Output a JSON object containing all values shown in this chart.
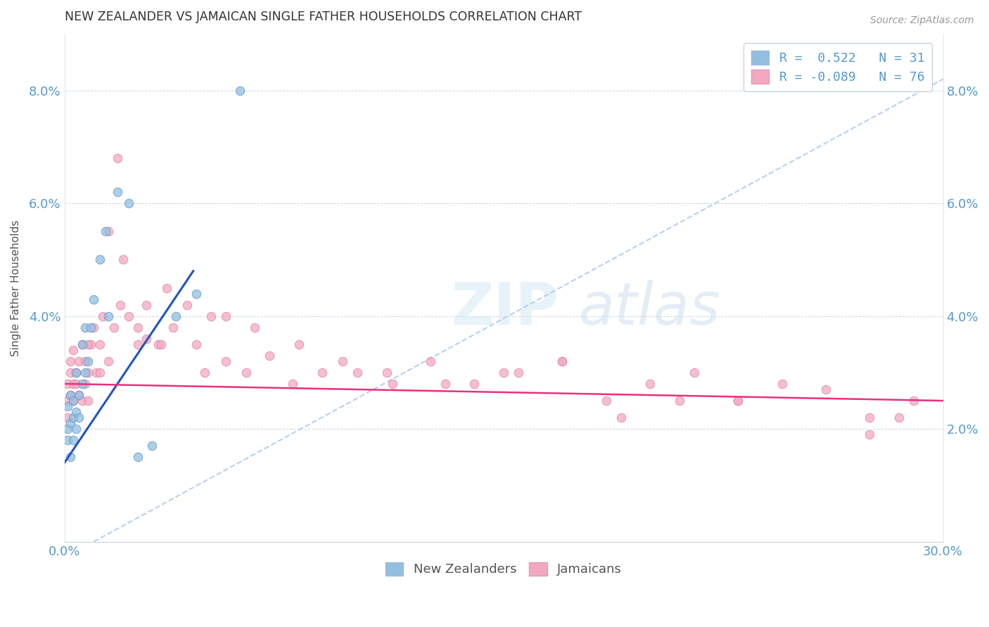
{
  "title": "NEW ZEALANDER VS JAMAICAN SINGLE FATHER HOUSEHOLDS CORRELATION CHART",
  "source": "Source: ZipAtlas.com",
  "ylabel": "Single Father Households",
  "xlim": [
    0.0,
    0.3
  ],
  "ylim": [
    0.0,
    0.09
  ],
  "xticks": [
    0.0,
    0.05,
    0.1,
    0.15,
    0.2,
    0.25,
    0.3
  ],
  "xtick_labels": [
    "0.0%",
    "",
    "",
    "",
    "",
    "",
    "30.0%"
  ],
  "yticks": [
    0.0,
    0.02,
    0.04,
    0.06,
    0.08
  ],
  "ytick_labels_left": [
    "",
    "",
    "4.0%",
    "6.0%",
    "8.0%"
  ],
  "ytick_labels_right": [
    "",
    "2.0%",
    "4.0%",
    "6.0%",
    "8.0%"
  ],
  "legend_label1": "New Zealanders",
  "legend_label2": "Jamaicans",
  "blue_color": "#92BEE0",
  "pink_color": "#F4A8C0",
  "blue_line_color": "#2255BB",
  "pink_line_color": "#E83080",
  "dashed_line_color": "#B0CCEE",
  "background_color": "#FFFFFF",
  "tick_color": "#5599CC",
  "nz_x": [
    0.001,
    0.001,
    0.001,
    0.002,
    0.002,
    0.002,
    0.003,
    0.003,
    0.003,
    0.004,
    0.004,
    0.004,
    0.005,
    0.005,
    0.006,
    0.006,
    0.007,
    0.007,
    0.008,
    0.009,
    0.01,
    0.012,
    0.014,
    0.015,
    0.018,
    0.022,
    0.025,
    0.03,
    0.038,
    0.045,
    0.06
  ],
  "nz_y": [
    0.02,
    0.024,
    0.018,
    0.021,
    0.026,
    0.015,
    0.022,
    0.018,
    0.025,
    0.023,
    0.03,
    0.02,
    0.026,
    0.022,
    0.028,
    0.035,
    0.03,
    0.038,
    0.032,
    0.038,
    0.043,
    0.05,
    0.055,
    0.04,
    0.062,
    0.06,
    0.015,
    0.017,
    0.04,
    0.044,
    0.08
  ],
  "jam_x": [
    0.001,
    0.001,
    0.001,
    0.002,
    0.002,
    0.002,
    0.003,
    0.003,
    0.003,
    0.004,
    0.004,
    0.005,
    0.005,
    0.006,
    0.006,
    0.007,
    0.007,
    0.008,
    0.008,
    0.009,
    0.01,
    0.011,
    0.012,
    0.013,
    0.015,
    0.017,
    0.019,
    0.022,
    0.025,
    0.028,
    0.032,
    0.037,
    0.042,
    0.048,
    0.055,
    0.062,
    0.07,
    0.078,
    0.088,
    0.1,
    0.112,
    0.125,
    0.14,
    0.155,
    0.17,
    0.185,
    0.2,
    0.215,
    0.23,
    0.245,
    0.26,
    0.275,
    0.015,
    0.02,
    0.028,
    0.035,
    0.045,
    0.055,
    0.065,
    0.08,
    0.095,
    0.11,
    0.13,
    0.15,
    0.17,
    0.19,
    0.21,
    0.23,
    0.008,
    0.012,
    0.018,
    0.025,
    0.033,
    0.05,
    0.29,
    0.285,
    0.275
  ],
  "jam_y": [
    0.028,
    0.025,
    0.022,
    0.03,
    0.026,
    0.032,
    0.028,
    0.034,
    0.025,
    0.03,
    0.028,
    0.032,
    0.026,
    0.035,
    0.025,
    0.032,
    0.028,
    0.03,
    0.025,
    0.035,
    0.038,
    0.03,
    0.035,
    0.04,
    0.032,
    0.038,
    0.042,
    0.04,
    0.038,
    0.036,
    0.035,
    0.038,
    0.042,
    0.03,
    0.032,
    0.03,
    0.033,
    0.028,
    0.03,
    0.03,
    0.028,
    0.032,
    0.028,
    0.03,
    0.032,
    0.025,
    0.028,
    0.03,
    0.025,
    0.028,
    0.027,
    0.022,
    0.055,
    0.05,
    0.042,
    0.045,
    0.035,
    0.04,
    0.038,
    0.035,
    0.032,
    0.03,
    0.028,
    0.03,
    0.032,
    0.022,
    0.025,
    0.025,
    0.035,
    0.03,
    0.068,
    0.035,
    0.035,
    0.04,
    0.025,
    0.022,
    0.019
  ]
}
